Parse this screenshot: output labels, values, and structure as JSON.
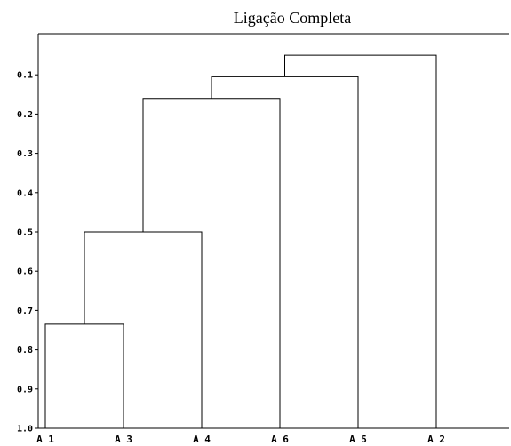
{
  "chart_data": {
    "type": "dendrogram",
    "title": "Ligação Completa",
    "xlabel": "",
    "ylabel": "",
    "ylim": [
      0.0,
      1.0
    ],
    "y_inverted": true,
    "grid": false,
    "y_ticks": [
      "0.1",
      "0.2",
      "0.3",
      "0.4",
      "0.5",
      "0.6",
      "0.7",
      "0.8",
      "0.9",
      "1.0"
    ],
    "leaves": [
      "A1",
      "A3",
      "A4",
      "A6",
      "A5",
      "A2"
    ],
    "leaf_labels": [
      "A 1",
      "A 3",
      "A 4",
      "A 6",
      "A 5",
      "A 2"
    ],
    "merges": [
      {
        "left": "A1",
        "right": "A3",
        "height": 0.735
      },
      {
        "left": "A1+A3",
        "right": "A4",
        "height": 0.5
      },
      {
        "left": "A1+A3+A4",
        "right": "A6",
        "height": 0.16
      },
      {
        "left": "A1+A3+A4+A6",
        "right": "A5",
        "height": 0.105
      },
      {
        "left": "A1+A3+A4+A6+A5",
        "right": "A2",
        "height": 0.05
      }
    ]
  }
}
